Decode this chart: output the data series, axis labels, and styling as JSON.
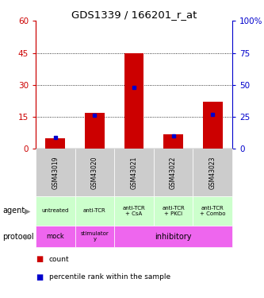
{
  "title": "GDS1339 / 166201_r_at",
  "samples": [
    "GSM43019",
    "GSM43020",
    "GSM43021",
    "GSM43022",
    "GSM43023"
  ],
  "count_values": [
    5,
    17,
    45,
    7,
    22
  ],
  "percentile_values": [
    9,
    26,
    48,
    10,
    27
  ],
  "left_ylim": [
    0,
    60
  ],
  "right_ylim": [
    0,
    100
  ],
  "left_yticks": [
    0,
    15,
    30,
    45,
    60
  ],
  "right_yticks": [
    0,
    25,
    50,
    75,
    100
  ],
  "left_yticklabels": [
    "0",
    "15",
    "30",
    "45",
    "60"
  ],
  "right_yticklabels": [
    "0",
    "25",
    "50",
    "75",
    "100%"
  ],
  "bar_color": "#cc0000",
  "dot_color": "#0000cc",
  "agent_labels": [
    "untreated",
    "anti-TCR",
    "anti-TCR\n+ CsA",
    "anti-TCR\n+ PKCi",
    "anti-TCR\n+ Combo"
  ],
  "agent_bg": "#ccffcc",
  "protocol_bg": "#ee66ee",
  "gsm_bg_color": "#cccccc",
  "legend_count_color": "#cc0000",
  "legend_pct_color": "#0000cc",
  "left_axis_color": "#cc0000",
  "right_axis_color": "#0000cc",
  "bar_width": 0.5
}
